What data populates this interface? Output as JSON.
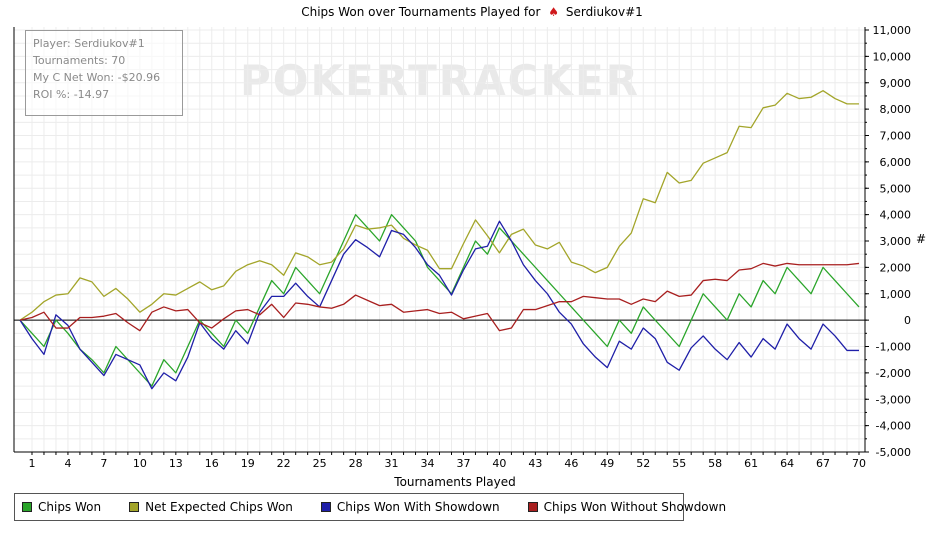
{
  "chart_data": {
    "type": "line",
    "title": "Chips Won over Tournaments Played for",
    "player_name": "Serdiukov#1",
    "xlabel": "Tournaments Played",
    "ylabel": "#",
    "watermark": "POKERTRACKER",
    "xlim": [
      0,
      70
    ],
    "ylim": [
      -5000,
      11000
    ],
    "x_ticks": [
      1,
      4,
      7,
      10,
      13,
      16,
      19,
      22,
      25,
      28,
      31,
      34,
      37,
      40,
      43,
      46,
      49,
      52,
      55,
      58,
      61,
      64,
      67,
      70
    ],
    "y_ticks": [
      -5000,
      -4000,
      -3000,
      -2000,
      -1000,
      0,
      1000,
      2000,
      3000,
      4000,
      5000,
      6000,
      7000,
      8000,
      9000,
      10000,
      11000
    ],
    "y_tick_labels": [
      "-5,000",
      "-4,000",
      "-3,000",
      "-2,000",
      "-1,000",
      "0",
      "1,000",
      "2,000",
      "3,000",
      "4,000",
      "5,000",
      "6,000",
      "7,000",
      "8,000",
      "9,000",
      "10,000",
      "11,000"
    ],
    "grid": true,
    "legend_position": "bottom",
    "series": [
      {
        "name": "Chips Won",
        "color": "#2aa52a",
        "values": [
          0,
          -500,
          -1000,
          0,
          -500,
          -1100,
          -1500,
          -2000,
          -1000,
          -1500,
          -2000,
          -2500,
          -1500,
          -2000,
          -1000,
          0,
          -500,
          -1000,
          0,
          -500,
          500,
          1500,
          1000,
          2000,
          1500,
          1000,
          2000,
          3000,
          4000,
          3500,
          3000,
          4000,
          3500,
          3000,
          2000,
          1500,
          1000,
          2000,
          3000,
          2500,
          3500,
          3000,
          2500,
          2000,
          1500,
          1000,
          500,
          0,
          -500,
          -1000,
          0,
          -500,
          500,
          0,
          -500,
          -1000,
          0,
          1000,
          500,
          0,
          1000,
          500,
          1500,
          1000,
          2000,
          1500,
          1000,
          2000,
          1500,
          1000,
          500
        ]
      },
      {
        "name": "Net Expected Chips Won",
        "color": "#a3a52a",
        "values": [
          0,
          300,
          700,
          950,
          1000,
          1600,
          1450,
          900,
          1200,
          800,
          300,
          600,
          1000,
          950,
          1200,
          1450,
          1150,
          1300,
          1850,
          2100,
          2250,
          2100,
          1700,
          2550,
          2400,
          2100,
          2200,
          2700,
          3600,
          3450,
          3500,
          3600,
          3100,
          2850,
          2650,
          1950,
          1950,
          2900,
          3800,
          3200,
          2550,
          3250,
          3450,
          2850,
          2700,
          2950,
          2200,
          2050,
          1800,
          2000,
          2800,
          3300,
          4600,
          4450,
          5600,
          5200,
          5300,
          5950,
          6150,
          6350,
          7350,
          7300,
          8050,
          8150,
          8600,
          8400,
          8450,
          8700,
          8400,
          8200,
          8200
        ]
      },
      {
        "name": "Chips Won With Showdown",
        "color": "#1f1fa8",
        "values": [
          0,
          -700,
          -1300,
          200,
          -200,
          -1100,
          -1600,
          -2100,
          -1300,
          -1500,
          -1700,
          -2600,
          -2000,
          -2300,
          -1400,
          -100,
          -700,
          -1100,
          -400,
          -900,
          300,
          900,
          900,
          1400,
          900,
          500,
          1500,
          2500,
          3050,
          2750,
          2400,
          3400,
          3250,
          2750,
          2100,
          1700,
          950,
          1900,
          2700,
          2800,
          3750,
          3000,
          2100,
          1500,
          1000,
          300,
          -150,
          -900,
          -1400,
          -1800,
          -800,
          -1100,
          -300,
          -700,
          -1600,
          -1900,
          -1050,
          -600,
          -1100,
          -1500,
          -850,
          -1400,
          -700,
          -1100,
          -150,
          -700,
          -1100,
          -150,
          -600,
          -1150,
          -1150
        ]
      },
      {
        "name": "Chips Won Without Showdown",
        "color": "#a81f1f",
        "values": [
          0,
          100,
          300,
          -300,
          -300,
          100,
          100,
          150,
          250,
          -100,
          -400,
          300,
          500,
          350,
          400,
          -100,
          -300,
          50,
          350,
          400,
          200,
          600,
          100,
          650,
          600,
          500,
          450,
          600,
          950,
          750,
          550,
          600,
          300,
          350,
          400,
          250,
          300,
          50,
          150,
          250,
          -400,
          -300,
          400,
          400,
          550,
          700,
          700,
          900,
          850,
          800,
          800,
          600,
          800,
          700,
          1100,
          900,
          950,
          1500,
          1550,
          1500,
          1900,
          1950,
          2150,
          2050,
          2150,
          2100,
          2100,
          2100,
          2100,
          2100,
          2150
        ]
      }
    ]
  },
  "info_box": {
    "player": "Player: Serdiukov#1",
    "tournaments": "Tournaments: 70",
    "net_won": "My C Net Won: -$20.96",
    "roi": "ROI %: -14.97"
  }
}
